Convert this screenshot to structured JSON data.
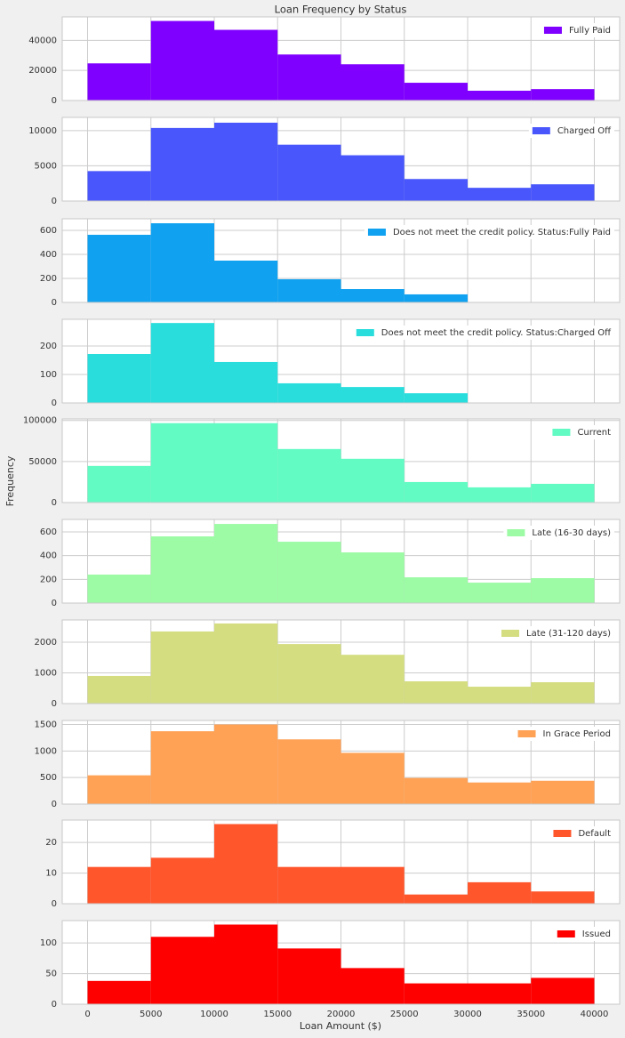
{
  "figure": {
    "title": "Loan Frequency by Status",
    "xlabel": "Loan Amount ($)",
    "ylabel": "Frequency",
    "xlim": [
      -2000,
      42000
    ],
    "xticks": [
      0,
      5000,
      10000,
      15000,
      20000,
      25000,
      30000,
      35000,
      40000
    ]
  },
  "chart_data": [
    {
      "type": "histogram",
      "name": "Fully Paid",
      "color": "#8000ff",
      "bins": [
        0,
        5000,
        10000,
        15000,
        20000,
        25000,
        30000,
        35000,
        40000
      ],
      "counts": [
        24700,
        52900,
        47000,
        30600,
        24100,
        11800,
        6500,
        7600
      ],
      "ylim": [
        0,
        55600
      ],
      "yticks": [
        0,
        20000,
        40000
      ],
      "grid": true,
      "legend": "upper right"
    },
    {
      "type": "histogram",
      "name": "Charged Off",
      "color": "#4856fb",
      "bins": [
        0,
        5000,
        10000,
        15000,
        20000,
        25000,
        30000,
        35000,
        40000
      ],
      "counts": [
        4250,
        10375,
        11125,
        8000,
        6500,
        3125,
        1875,
        2375
      ],
      "ylim": [
        0,
        11875
      ],
      "yticks": [
        0,
        5000,
        10000
      ],
      "grid": true,
      "legend": "upper right"
    },
    {
      "type": "histogram",
      "name": "Does not meet the credit policy. Status:Fully Paid",
      "color": "#10a2f0",
      "bins": [
        0,
        5000,
        10000,
        15000,
        20000,
        25000,
        30000,
        35000,
        40000
      ],
      "counts": [
        563,
        659,
        348,
        193,
        111,
        67,
        0,
        0
      ],
      "ylim": [
        0,
        696
      ],
      "yticks": [
        0,
        200,
        400,
        600
      ],
      "grid": true,
      "legend": "upper right"
    },
    {
      "type": "histogram",
      "name": "Does not meet the credit policy. Status:Charged Off",
      "color": "#2adddd",
      "bins": [
        0,
        5000,
        10000,
        15000,
        20000,
        25000,
        30000,
        35000,
        40000
      ],
      "counts": [
        172,
        281,
        144,
        69,
        56,
        34,
        0,
        0
      ],
      "ylim": [
        0,
        294
      ],
      "yticks": [
        0,
        100,
        200
      ],
      "grid": true,
      "legend": "upper right"
    },
    {
      "type": "histogram",
      "name": "Current",
      "color": "#62fbc4",
      "bins": [
        0,
        5000,
        10000,
        15000,
        20000,
        25000,
        30000,
        35000,
        40000
      ],
      "counts": [
        44600,
        96700,
        96700,
        65200,
        53300,
        25000,
        18500,
        22800
      ],
      "ylim": [
        0,
        101850
      ],
      "yticks": [
        0,
        50000,
        100000
      ],
      "grid": true,
      "legend": "upper right"
    },
    {
      "type": "histogram",
      "name": "Late (16-30 days)",
      "color": "#9cfba4",
      "bins": [
        0,
        5000,
        10000,
        15000,
        20000,
        25000,
        30000,
        35000,
        40000
      ],
      "counts": [
        240,
        562,
        667,
        517,
        427,
        217,
        172,
        210
      ],
      "ylim": [
        0,
        705
      ],
      "yticks": [
        0,
        200,
        400,
        600
      ],
      "grid": true,
      "legend": "upper right"
    },
    {
      "type": "histogram",
      "name": "Late (31-120 days)",
      "color": "#d4dd80",
      "bins": [
        0,
        5000,
        10000,
        15000,
        20000,
        25000,
        30000,
        35000,
        40000
      ],
      "counts": [
        900,
        2350,
        2610,
        1940,
        1590,
        725,
        550,
        695
      ],
      "ylim": [
        0,
        2725
      ],
      "yticks": [
        0,
        1000,
        2000
      ],
      "grid": true,
      "legend": "upper right"
    },
    {
      "type": "histogram",
      "name": "In Grace Period",
      "color": "#ffa256",
      "bins": [
        0,
        5000,
        10000,
        15000,
        20000,
        25000,
        30000,
        35000,
        40000
      ],
      "counts": [
        542,
        1373,
        1500,
        1220,
        966,
        492,
        407,
        440
      ],
      "ylim": [
        0,
        1576
      ],
      "yticks": [
        0,
        500,
        1000,
        1500
      ],
      "grid": true,
      "legend": "upper right"
    },
    {
      "type": "histogram",
      "name": "Default",
      "color": "#ff562c",
      "bins": [
        0,
        5000,
        10000,
        15000,
        20000,
        25000,
        30000,
        35000,
        40000
      ],
      "counts": [
        12,
        15,
        26,
        12,
        12,
        3,
        7,
        4
      ],
      "ylim": [
        0,
        27.3
      ],
      "yticks": [
        0,
        10,
        20
      ],
      "grid": true,
      "legend": "upper right"
    },
    {
      "type": "histogram",
      "name": "Issued",
      "color": "#ff0000",
      "bins": [
        0,
        5000,
        10000,
        15000,
        20000,
        25000,
        30000,
        35000,
        40000
      ],
      "counts": [
        38,
        110,
        130,
        91,
        59,
        34,
        34,
        43
      ],
      "ylim": [
        0,
        136.5
      ],
      "yticks": [
        0,
        50,
        100
      ],
      "grid": true,
      "legend": "upper right"
    }
  ]
}
